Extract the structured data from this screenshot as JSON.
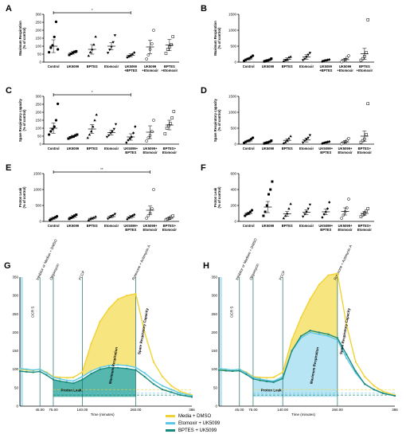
{
  "panels_top": [
    {
      "letter": "A",
      "ylabel": "Maximum Respiration\n(% of control)",
      "ylim": [
        0,
        300
      ],
      "yticks": [
        0,
        50,
        100,
        150,
        200,
        250,
        300
      ],
      "categories": [
        "Control",
        "UK5099",
        "BPTES",
        "Etomoxir",
        "UK5099\n+BPTES",
        "UK5099\n+Etomoxir",
        "BPTES\n+Etomoxir"
      ],
      "means": [
        100,
        58,
        80,
        100,
        43,
        95,
        107
      ],
      "sem": [
        40,
        8,
        30,
        22,
        9,
        42,
        35
      ],
      "points": [
        [
          62,
          90,
          105,
          158,
          253,
          80
        ],
        [
          45,
          52,
          60,
          65,
          68
        ],
        [
          40,
          62,
          80,
          110,
          160
        ],
        [
          58,
          78,
          95,
          125,
          168
        ],
        [
          30,
          35,
          42,
          50,
          60
        ],
        [
          20,
          45,
          80,
          115,
          200
        ],
        [
          55,
          80,
          95,
          110,
          160
        ]
      ],
      "sig": {
        "from": 0,
        "to": 4,
        "label": "*"
      }
    },
    {
      "letter": "B",
      "ylabel": "Maximum Respiration\n(% of control)",
      "ylim": [
        0,
        1500
      ],
      "yticks": [
        0,
        500,
        1000,
        1500
      ],
      "categories": [
        "Control",
        "UK5099",
        "BPTES",
        "Etomoxir",
        "UK5099\n+BPTES",
        "UK5099\n+Etomoxir",
        "BPTES\n+Etomoxir"
      ],
      "means": [
        100,
        60,
        90,
        160,
        55,
        80,
        260
      ],
      "sem": [
        30,
        20,
        45,
        70,
        20,
        40,
        170
      ],
      "points": [
        [
          40,
          70,
          100,
          120,
          160,
          200
        ],
        [
          20,
          40,
          55,
          75,
          110
        ],
        [
          30,
          60,
          90,
          150,
          170
        ],
        [
          60,
          100,
          160,
          230,
          290
        ],
        [
          20,
          40,
          55,
          70,
          80
        ],
        [
          10,
          40,
          80,
          140,
          200
        ],
        [
          60,
          110,
          180,
          300,
          1330
        ]
      ],
      "sig": null
    },
    {
      "letter": "C",
      "ylabel": "Spare Respiratory capacity\n(% of control)",
      "ylim": [
        0,
        300
      ],
      "yticks": [
        0,
        50,
        100,
        150,
        200,
        250,
        300
      ],
      "categories": [
        "Control",
        "UK5099",
        "BPTES",
        "Etomoxir",
        "UK5099+\nBPTES",
        "UK5099+\nEtomoxir",
        "BPTES+\nEtomoxir"
      ],
      "means": [
        100,
        48,
        95,
        72,
        45,
        75,
        120
      ],
      "sem": [
        32,
        7,
        28,
        15,
        20,
        40,
        30
      ],
      "points": [
        [
          60,
          80,
          95,
          110,
          150,
          253
        ],
        [
          35,
          40,
          45,
          48,
          55,
          60
        ],
        [
          40,
          60,
          80,
          110,
          150,
          185
        ],
        [
          45,
          55,
          70,
          80,
          95,
          125
        ],
        [
          10,
          25,
          35,
          45,
          70,
          110
        ],
        [
          20,
          40,
          55,
          80,
          150
        ],
        [
          65,
          100,
          115,
          130,
          165,
          205
        ]
      ],
      "sig": {
        "from": 0,
        "to": 4,
        "label": "*"
      }
    },
    {
      "letter": "D",
      "ylabel": "Spare Respiratory capacity\n(% of control)",
      "ylim": [
        0,
        1500
      ],
      "yticks": [
        0,
        500,
        1000,
        1500
      ],
      "categories": [
        "Control",
        "UK5099",
        "BPTES",
        "Etomoxir",
        "UK5099+\nBPTES",
        "UK5099+\nEtomoxir",
        "BPTES+\nEtomoxir"
      ],
      "means": [
        100,
        60,
        120,
        130,
        50,
        70,
        250
      ],
      "sem": [
        30,
        20,
        45,
        60,
        20,
        40,
        160
      ],
      "points": [
        [
          40,
          70,
          100,
          120,
          160,
          200
        ],
        [
          20,
          40,
          55,
          75,
          110
        ],
        [
          30,
          60,
          120,
          180,
          250
        ],
        [
          50,
          100,
          150,
          200,
          280
        ],
        [
          20,
          40,
          55,
          70,
          80
        ],
        [
          10,
          40,
          70,
          120,
          180
        ],
        [
          60,
          110,
          160,
          300,
          1270
        ]
      ],
      "sig": null
    },
    {
      "letter": "E",
      "ylabel": "Proton Leak\n(% of control)",
      "ylim": [
        0,
        1500
      ],
      "yticks": [
        0,
        500,
        1000,
        1500
      ],
      "categories": [
        "Control",
        "UK5099",
        "BPTES",
        "Etomoxir",
        "UK5099+\nBPTES",
        "UK5099+\nEtomoxir",
        "BPTES+\nEtomoxir"
      ],
      "means": [
        100,
        140,
        95,
        150,
        140,
        350,
        100
      ],
      "sem": [
        30,
        40,
        30,
        40,
        40,
        130,
        40
      ],
      "points": [
        [
          40,
          70,
          100,
          130,
          160
        ],
        [
          80,
          110,
          150,
          180,
          210
        ],
        [
          40,
          70,
          100,
          120,
          150
        ],
        [
          80,
          120,
          160,
          190,
          230
        ],
        [
          70,
          110,
          150,
          180,
          210
        ],
        [
          100,
          180,
          260,
          400,
          1000
        ],
        [
          40,
          70,
          100,
          140,
          170
        ]
      ],
      "sig": {
        "from": 0,
        "to": 5,
        "label": "**"
      }
    },
    {
      "letter": "F",
      "ylabel": "Proton Leak\n(% of control)",
      "ylim": [
        0,
        600
      ],
      "yticks": [
        0,
        200,
        400,
        600
      ],
      "categories": [
        "Control",
        "UK5099",
        "BPTES",
        "Etomoxir",
        "UK5099+\nBPTES",
        "UK5099+\nEtomoxir",
        "BPTES+\nEtomoxir"
      ],
      "means": [
        100,
        180,
        95,
        115,
        120,
        125,
        100
      ],
      "sem": [
        15,
        70,
        30,
        30,
        35,
        45,
        25
      ],
      "points": [
        [
          70,
          90,
          100,
          120,
          140
        ],
        [
          70,
          120,
          200,
          340,
          400,
          500
        ],
        [
          40,
          70,
          100,
          160,
          220
        ],
        [
          60,
          90,
          120,
          160,
          210
        ],
        [
          50,
          90,
          120,
          160,
          240
        ],
        [
          40,
          80,
          120,
          170,
          280
        ],
        [
          60,
          80,
          100,
          130,
          160
        ]
      ],
      "sig": null
    }
  ],
  "panels_bottom": [
    {
      "letter": "G",
      "ylabel": "OCR S",
      "xlabel": "Time (minutes)",
      "yticks": [
        0,
        50,
        100,
        150,
        200,
        250,
        300,
        350
      ],
      "xtick_labels": [
        "45.00",
        "75.00",
        "140.00",
        "260.00",
        "386"
      ],
      "events": [
        {
          "t": 45,
          "label": "Inhibitor or Mediun + DMSO"
        },
        {
          "t": 75,
          "label": "Oligomycin"
        },
        {
          "t": 140,
          "label": "FCCP"
        },
        {
          "t": 260,
          "label": "Rotenone + Antimycin A"
        }
      ],
      "region_labels": [
        "Proton Leak",
        "Maximum Respiration",
        "Spare Respiratory Capacity"
      ],
      "series": [
        {
          "name": "Media + DMSO",
          "color": "#f2d233",
          "x": [
            0,
            15,
            30,
            45,
            60,
            75,
            90,
            105,
            120,
            140,
            160,
            180,
            200,
            220,
            240,
            260,
            280,
            300,
            320,
            340,
            360,
            386
          ],
          "y": [
            100,
            98,
            97,
            100,
            92,
            80,
            78,
            77,
            78,
            92,
            170,
            230,
            265,
            290,
            300,
            305,
            200,
            120,
            80,
            55,
            40,
            30
          ]
        },
        {
          "name": "Etomoxir + UK5099",
          "color": "#5bc8e6",
          "x": [
            0,
            15,
            30,
            45,
            60,
            75,
            90,
            105,
            120,
            140,
            160,
            180,
            200,
            220,
            240,
            260,
            280,
            300,
            320,
            340,
            360,
            386
          ],
          "y": [
            102,
            100,
            98,
            100,
            90,
            78,
            74,
            70,
            68,
            80,
            95,
            105,
            110,
            112,
            110,
            105,
            90,
            70,
            55,
            45,
            35,
            28
          ]
        },
        {
          "name": "BPTES + UK5099",
          "color": "#1a8a7e",
          "x": [
            0,
            15,
            30,
            45,
            60,
            75,
            90,
            105,
            120,
            140,
            160,
            180,
            200,
            220,
            240,
            260,
            280,
            300,
            320,
            340,
            360,
            386
          ],
          "y": [
            95,
            93,
            92,
            94,
            84,
            72,
            68,
            65,
            62,
            72,
            88,
            100,
            105,
            104,
            102,
            98,
            80,
            60,
            45,
            38,
            30,
            25
          ]
        }
      ]
    },
    {
      "letter": "H",
      "ylabel": "OCR S",
      "xlabel": "Time (minutes)",
      "yticks": [
        0,
        50,
        100,
        150,
        200,
        250,
        300,
        350
      ],
      "xtick_labels": [
        "45.00",
        "75.00",
        "140.00",
        "260.00",
        "386"
      ],
      "events": [
        {
          "t": 45,
          "label": "Inhibitor or Medium + DMSO"
        },
        {
          "t": 75,
          "label": "Oligomycin"
        },
        {
          "t": 140,
          "label": "FCCP"
        },
        {
          "t": 260,
          "label": "Rotenone + Antimycin A"
        }
      ],
      "region_labels": [
        "Proton Leak",
        "Maximum Respiration",
        "Spare Respiratory Capacity"
      ],
      "series": [
        {
          "name": "Media + DMSO",
          "color": "#f2d233",
          "x": [
            0,
            15,
            30,
            45,
            60,
            75,
            90,
            105,
            120,
            140,
            160,
            180,
            200,
            220,
            240,
            260,
            280,
            300,
            320,
            340,
            360,
            386
          ],
          "y": [
            100,
            98,
            97,
            100,
            92,
            80,
            78,
            77,
            78,
            92,
            180,
            240,
            290,
            330,
            355,
            360,
            220,
            120,
            80,
            55,
            40,
            30
          ]
        },
        {
          "name": "Etomoxir + UK5099",
          "color": "#5bc8e6",
          "x": [
            0,
            15,
            30,
            45,
            60,
            75,
            90,
            105,
            120,
            140,
            160,
            180,
            200,
            220,
            240,
            260,
            280,
            300,
            320,
            340,
            360,
            386
          ],
          "y": [
            102,
            100,
            98,
            100,
            90,
            78,
            74,
            70,
            68,
            80,
            150,
            185,
            200,
            195,
            190,
            180,
            130,
            90,
            60,
            45,
            35,
            28
          ]
        },
        {
          "name": "BPTES + UK5099",
          "color": "#1a8a7e",
          "x": [
            0,
            15,
            30,
            45,
            60,
            75,
            90,
            105,
            120,
            140,
            160,
            180,
            200,
            220,
            240,
            260,
            280,
            300,
            320,
            340,
            360,
            386
          ],
          "y": [
            98,
            96,
            95,
            96,
            86,
            74,
            70,
            67,
            65,
            75,
            150,
            190,
            205,
            200,
            195,
            185,
            140,
            95,
            60,
            45,
            35,
            28
          ]
        }
      ]
    }
  ],
  "legend": [
    {
      "label": "Media + DMSO",
      "color": "#f2d233"
    },
    {
      "label": "Etomoxir + UK5099",
      "color": "#5bc8e6"
    },
    {
      "label": "BPTES + UK5099",
      "color": "#1a8a7e"
    }
  ],
  "chart_data": [
    {
      "type": "scatter",
      "title": "A",
      "ylabel": "Maximum Respiration (% of control)",
      "categories": [
        "Control",
        "UK5099",
        "BPTES",
        "Etomoxir",
        "UK5099+BPTES",
        "UK5099+Etomoxir",
        "BPTES+Etomoxir"
      ],
      "means": [
        100,
        58,
        80,
        100,
        43,
        95,
        107
      ],
      "ylim": [
        0,
        300
      ]
    },
    {
      "type": "scatter",
      "title": "B",
      "ylabel": "Maximum Respiration (% of control)",
      "categories": [
        "Control",
        "UK5099",
        "BPTES",
        "Etomoxir",
        "UK5099+BPTES",
        "UK5099+Etomoxir",
        "BPTES+Etomoxir"
      ],
      "means": [
        100,
        60,
        90,
        160,
        55,
        80,
        260
      ],
      "ylim": [
        0,
        1500
      ]
    },
    {
      "type": "scatter",
      "title": "C",
      "ylabel": "Spare Respiratory capacity (% of control)",
      "categories": [
        "Control",
        "UK5099",
        "BPTES",
        "Etomoxir",
        "UK5099+BPTES",
        "UK5099+Etomoxir",
        "BPTES+Etomoxir"
      ],
      "means": [
        100,
        48,
        95,
        72,
        45,
        75,
        120
      ],
      "ylim": [
        0,
        300
      ]
    },
    {
      "type": "scatter",
      "title": "D",
      "ylabel": "Spare Respiratory capacity (% of control)",
      "categories": [
        "Control",
        "UK5099",
        "BPTES",
        "Etomoxir",
        "UK5099+BPTES",
        "UK5099+Etomoxir",
        "BPTES+Etomoxir"
      ],
      "means": [
        100,
        60,
        120,
        130,
        50,
        70,
        250
      ],
      "ylim": [
        0,
        1500
      ]
    },
    {
      "type": "scatter",
      "title": "E",
      "ylabel": "Proton Leak (% of control)",
      "categories": [
        "Control",
        "UK5099",
        "BPTES",
        "Etomoxir",
        "UK5099+BPTES",
        "UK5099+Etomoxir",
        "BPTES+Etomoxir"
      ],
      "means": [
        100,
        140,
        95,
        150,
        140,
        350,
        100
      ],
      "ylim": [
        0,
        1500
      ]
    },
    {
      "type": "scatter",
      "title": "F",
      "ylabel": "Proton Leak (% of control)",
      "categories": [
        "Control",
        "UK5099",
        "BPTES",
        "Etomoxir",
        "UK5099+BPTES",
        "UK5099+Etomoxir",
        "BPTES+Etomoxir"
      ],
      "means": [
        100,
        180,
        95,
        115,
        120,
        125,
        100
      ],
      "ylim": [
        0,
        600
      ]
    },
    {
      "type": "line",
      "title": "G",
      "xlabel": "Time (minutes)",
      "ylabel": "OCR S",
      "series": [
        "Media + DMSO",
        "Etomoxir + UK5099",
        "BPTES + UK5099"
      ]
    },
    {
      "type": "line",
      "title": "H",
      "xlabel": "Time (minutes)",
      "ylabel": "OCR S",
      "series": [
        "Media + DMSO",
        "Etomoxir + UK5099",
        "BPTES + UK5099"
      ]
    }
  ]
}
